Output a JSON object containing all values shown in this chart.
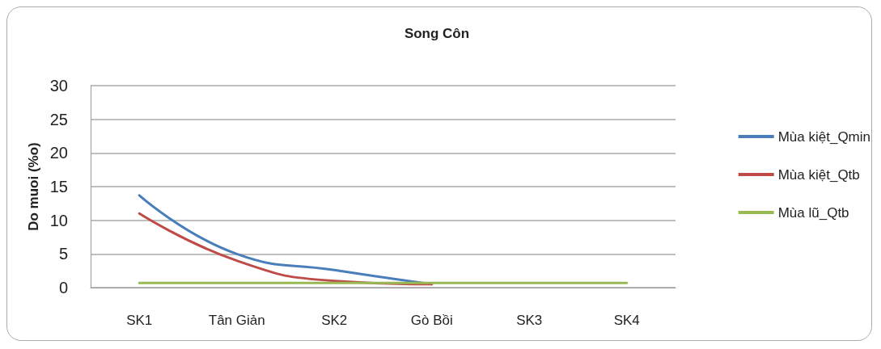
{
  "chart_data": {
    "type": "line",
    "title": "Song Côn",
    "ylabel": "Do muoi (%o)",
    "categories": [
      "SK1",
      "Tân Giản",
      "SK2",
      "Gò Bồi",
      "SK3",
      "SK4"
    ],
    "series": [
      {
        "name": "Mùa kiệt_Qmin",
        "color": "#4a7ebb",
        "values": [
          13.7,
          5,
          2.6,
          0.5,
          null,
          null
        ]
      },
      {
        "name": "Mùa kiệt_Qtb",
        "color": "#be4b48",
        "values": [
          11,
          4,
          1,
          0.5,
          null,
          null
        ]
      },
      {
        "name": "Mùa lũ_Qtb",
        "color": "#98b954",
        "values": [
          0.7,
          0.7,
          0.7,
          0.7,
          0.7,
          0.7
        ]
      }
    ],
    "ylim": [
      0,
      30
    ],
    "yticks": [
      0,
      5,
      10,
      15,
      20,
      25,
      30
    ],
    "grid": "y",
    "legend": "right",
    "marker": "none",
    "line_style": "solid"
  }
}
